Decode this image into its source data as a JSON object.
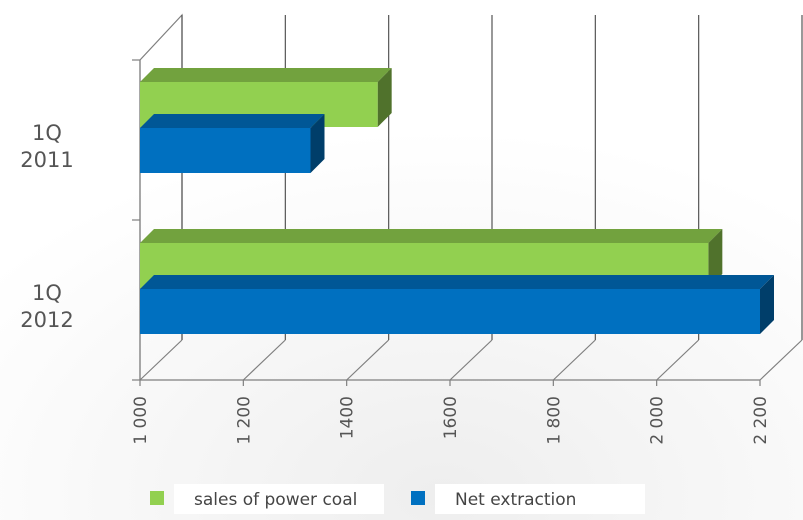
{
  "chart_data": {
    "type": "bar",
    "orientation": "horizontal",
    "style": "3d",
    "categories": [
      {
        "line1": "1Q",
        "line2": "2011"
      },
      {
        "line1": "1Q",
        "line2": "2012"
      }
    ],
    "series": [
      {
        "name": "sales of power coal",
        "color": "#92d050",
        "values": [
          1460,
          2100
        ]
      },
      {
        "name": "Net extraction",
        "color": "#0070c0",
        "values": [
          1330,
          2200
        ]
      }
    ],
    "xlim": [
      1000,
      2200
    ],
    "ticks": [
      "1 000",
      "1 200",
      "1400",
      "1600",
      "1 800",
      "2 000",
      "2 200"
    ],
    "grid": true,
    "legend_position": "bottom",
    "title": "",
    "xlabel": "",
    "ylabel": ""
  }
}
